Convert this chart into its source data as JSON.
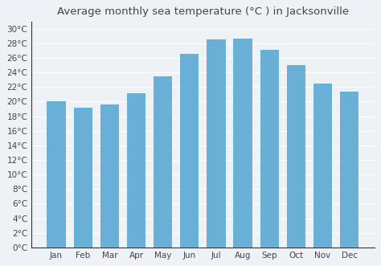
{
  "title": "Average monthly sea temperature (°C ) in Jacksonville",
  "months": [
    "Jan",
    "Feb",
    "Mar",
    "Apr",
    "May",
    "Jun",
    "Jul",
    "Aug",
    "Sep",
    "Oct",
    "Nov",
    "Dec"
  ],
  "values": [
    20.0,
    19.2,
    19.6,
    21.1,
    23.5,
    26.5,
    28.5,
    28.6,
    27.1,
    25.0,
    22.5,
    21.4
  ],
  "bar_color": "#6aafd5",
  "background_color": "#eef2f7",
  "plot_bg_color": "#eef2f7",
  "grid_color": "#ffffff",
  "axis_color": "#333333",
  "text_color": "#444444",
  "ylim": [
    0,
    31
  ],
  "yticks": [
    0,
    2,
    4,
    6,
    8,
    10,
    12,
    14,
    16,
    18,
    20,
    22,
    24,
    26,
    28,
    30
  ],
  "title_fontsize": 9.5,
  "tick_fontsize": 7.5,
  "bar_width": 0.7
}
